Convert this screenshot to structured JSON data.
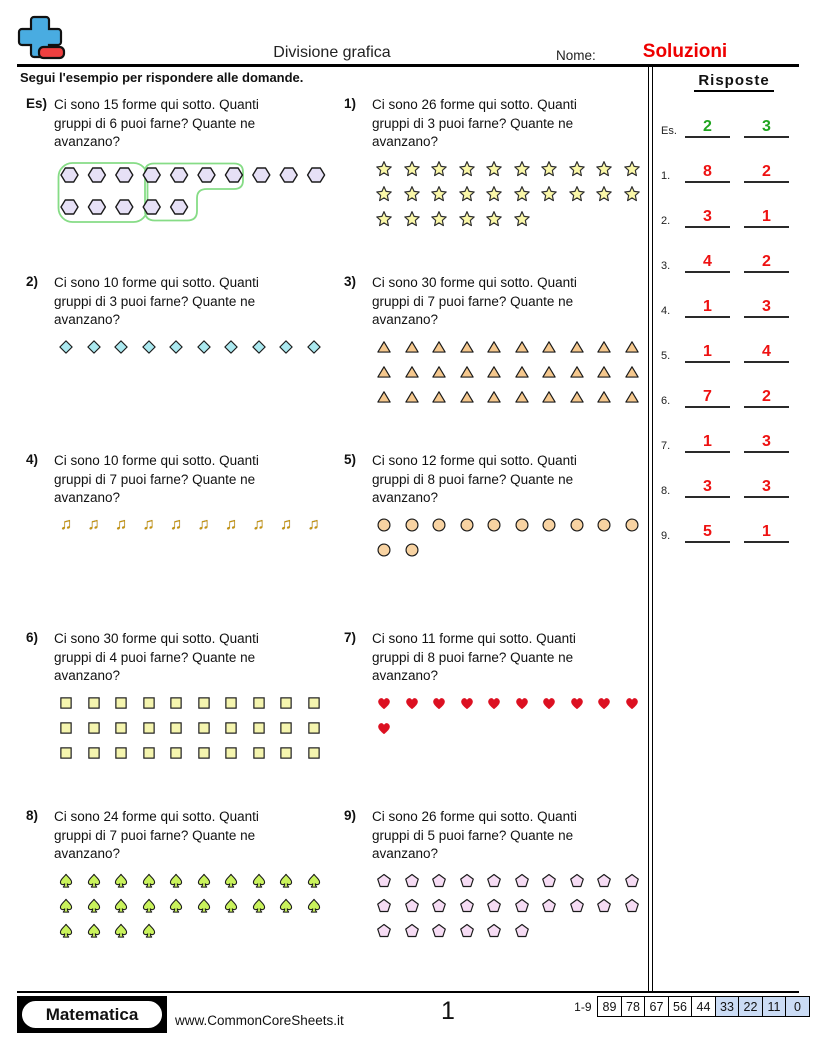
{
  "header": {
    "title": "Divisione grafica",
    "name_label": "Nome:",
    "solutions_value": "Soluzioni",
    "solutions_color": "#EE0000"
  },
  "instruction": "Segui l'esempio per rispondere alle domande.",
  "problems": [
    {
      "label": "Es)",
      "lines": [
        "Ci sono 15 forme qui sotto. Quanti",
        "gruppi di 6 puoi farne? Quante ne",
        "avanzano?"
      ],
      "shape": "hexagon",
      "fill": "#E6E0F6",
      "rows": [
        10,
        5
      ],
      "example_loops": true,
      "loop_color": "#86DC86"
    },
    {
      "label": "1)",
      "lines": [
        "Ci sono 26 forme qui sotto. Quanti",
        "gruppi di 3 puoi farne? Quante ne",
        "avanzano?"
      ],
      "shape": "star",
      "fill": "#FAF7A8",
      "rows": [
        10,
        10,
        6
      ]
    },
    {
      "label": "2)",
      "lines": [
        "Ci sono 10 forme qui sotto. Quanti",
        "gruppi di 3 puoi farne? Quante ne",
        "avanzano?"
      ],
      "shape": "diamond",
      "fill": "#ABE9F0",
      "rows": [
        10
      ]
    },
    {
      "label": "3)",
      "lines": [
        "Ci sono 30 forme qui sotto. Quanti",
        "gruppi di 7 puoi farne? Quante ne",
        "avanzano?"
      ],
      "shape": "triangle",
      "fill": "#F5C88E",
      "rows": [
        10,
        10,
        10
      ]
    },
    {
      "label": "4)",
      "lines": [
        "Ci sono 10 forme qui sotto. Quanti",
        "gruppi di 7 puoi farne? Quante ne",
        "avanzano?"
      ],
      "shape": "note",
      "fill": "#C8940A",
      "rows": [
        10
      ]
    },
    {
      "label": "5)",
      "lines": [
        "Ci sono 12 forme qui sotto. Quanti",
        "gruppi di 8 puoi farne? Quante ne",
        "avanzano?"
      ],
      "shape": "circle",
      "fill": "#F8D3A2",
      "rows": [
        10,
        2
      ]
    },
    {
      "label": "6)",
      "lines": [
        "Ci sono 30 forme qui sotto. Quanti",
        "gruppi di 4 puoi farne? Quante ne",
        "avanzano?"
      ],
      "shape": "square",
      "fill": "#F5F5AF",
      "rows": [
        10,
        10,
        10
      ]
    },
    {
      "label": "7)",
      "lines": [
        "Ci sono 11 forme qui sotto. Quanti",
        "gruppi di 8 puoi farne? Quante ne",
        "avanzano?"
      ],
      "shape": "heart",
      "fill": "#DC1021",
      "rows": [
        10,
        1
      ]
    },
    {
      "label": "8)",
      "lines": [
        "Ci sono 24 forme qui sotto. Quanti",
        "gruppi di 7 puoi farne? Quante ne",
        "avanzano?"
      ],
      "shape": "spade",
      "fill": "#C9F25C",
      "rows": [
        10,
        10,
        4
      ]
    },
    {
      "label": "9)",
      "lines": [
        "Ci sono 26 forme qui sotto. Quanti",
        "gruppi di 5 puoi farne? Quante ne",
        "avanzano?"
      ],
      "shape": "pentagon",
      "fill": "#F6DCF4",
      "rows": [
        10,
        10,
        6
      ]
    }
  ],
  "answers_panel": {
    "title": "Risposte",
    "rows": [
      {
        "label": "Es.",
        "groups": "2",
        "remainder": "3",
        "color": "#1FA41F"
      },
      {
        "label": "1.",
        "groups": "8",
        "remainder": "2",
        "color": "#EE1111"
      },
      {
        "label": "2.",
        "groups": "3",
        "remainder": "1",
        "color": "#EE1111"
      },
      {
        "label": "3.",
        "groups": "4",
        "remainder": "2",
        "color": "#EE1111"
      },
      {
        "label": "4.",
        "groups": "1",
        "remainder": "3",
        "color": "#EE1111"
      },
      {
        "label": "5.",
        "groups": "1",
        "remainder": "4",
        "color": "#EE1111"
      },
      {
        "label": "6.",
        "groups": "7",
        "remainder": "2",
        "color": "#EE1111"
      },
      {
        "label": "7.",
        "groups": "1",
        "remainder": "3",
        "color": "#EE1111"
      },
      {
        "label": "8.",
        "groups": "3",
        "remainder": "3",
        "color": "#EE1111"
      },
      {
        "label": "9.",
        "groups": "5",
        "remainder": "1",
        "color": "#EE1111"
      }
    ]
  },
  "footer": {
    "brand": "Matematica",
    "site": "www.CommonCoreSheets.it",
    "page": "1",
    "score_label": "1-9",
    "score_cells": [
      {
        "value": "89",
        "highlight": false
      },
      {
        "value": "78",
        "highlight": false
      },
      {
        "value": "67",
        "highlight": false
      },
      {
        "value": "56",
        "highlight": false
      },
      {
        "value": "44",
        "highlight": false
      },
      {
        "value": "33",
        "highlight": true
      },
      {
        "value": "22",
        "highlight": true
      },
      {
        "value": "11",
        "highlight": true
      },
      {
        "value": "0",
        "highlight": true
      }
    ]
  }
}
